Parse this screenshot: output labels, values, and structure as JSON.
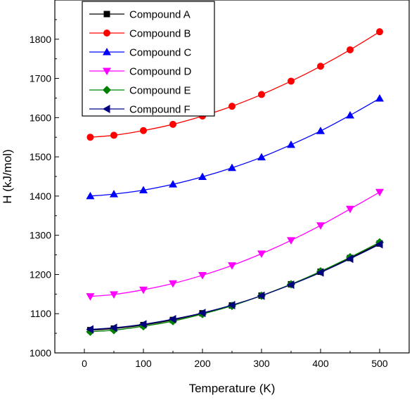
{
  "chart_data": {
    "type": "line",
    "title": "",
    "xlabel": "Temperature (K)",
    "ylabel": "H (kJ/mol)",
    "xlim": [
      -50,
      550
    ],
    "ylim": [
      1000,
      1900
    ],
    "xticks": [
      0,
      100,
      200,
      300,
      400,
      500
    ],
    "yticks": [
      1000,
      1100,
      1200,
      1300,
      1400,
      1500,
      1600,
      1700,
      1800
    ],
    "x": [
      10,
      50,
      100,
      150,
      200,
      250,
      300,
      350,
      400,
      450,
      500
    ],
    "grid": false,
    "legend_position": "top-left",
    "series": [
      {
        "name": "Compound A",
        "color": "#000000",
        "marker": "square",
        "values": [
          1058,
          1062,
          1071,
          1084,
          1101,
          1121,
          1146,
          1175,
          1207,
          1242,
          1279
        ]
      },
      {
        "name": "Compound B",
        "color": "#ff0000",
        "marker": "circle",
        "values": [
          1550,
          1555,
          1567,
          1583,
          1604,
          1629,
          1659,
          1693,
          1731,
          1773,
          1819
        ]
      },
      {
        "name": "Compound C",
        "color": "#0000ff",
        "marker": "triangle-up",
        "values": [
          1400,
          1405,
          1415,
          1430,
          1449,
          1472,
          1499,
          1531,
          1566,
          1606,
          1649
        ]
      },
      {
        "name": "Compound D",
        "color": "#ff00ff",
        "marker": "triangle-down",
        "values": [
          1144,
          1149,
          1161,
          1177,
          1198,
          1223,
          1253,
          1287,
          1325,
          1367,
          1410
        ]
      },
      {
        "name": "Compound E",
        "color": "#008000",
        "marker": "diamond",
        "values": [
          1054,
          1058,
          1068,
          1081,
          1099,
          1120,
          1146,
          1175,
          1208,
          1244,
          1282
        ]
      },
      {
        "name": "Compound F",
        "color": "#000080",
        "marker": "triangle-left",
        "values": [
          1060,
          1064,
          1073,
          1086,
          1102,
          1122,
          1146,
          1174,
          1205,
          1240,
          1277
        ]
      }
    ]
  }
}
